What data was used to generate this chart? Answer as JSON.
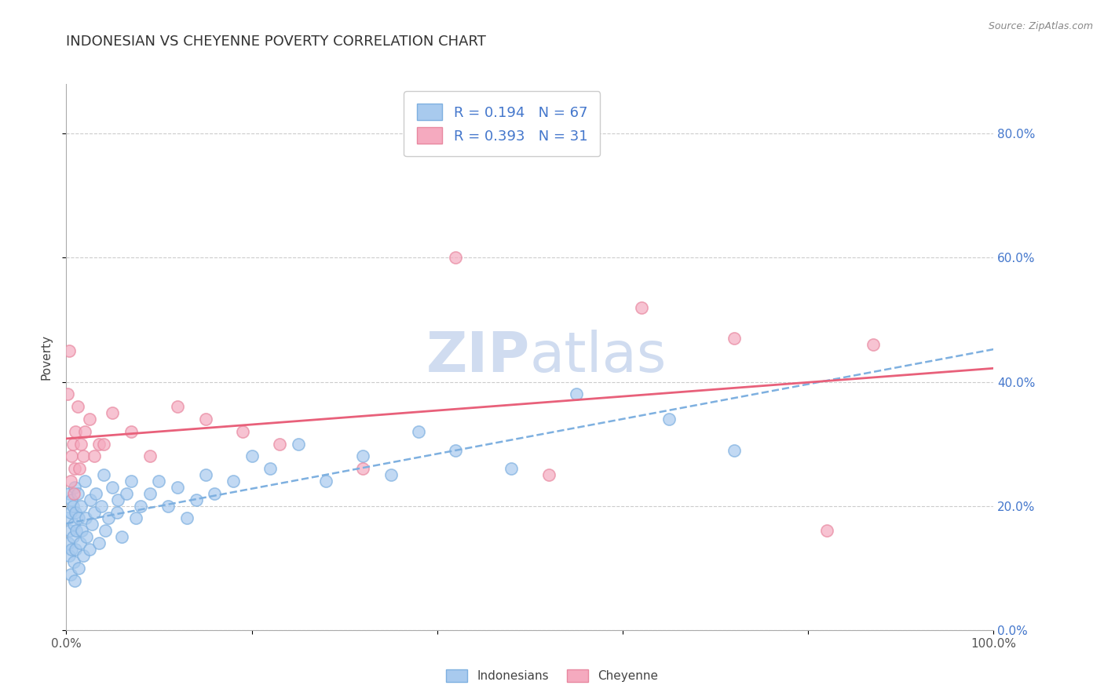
{
  "title": "INDONESIAN VS CHEYENNE POVERTY CORRELATION CHART",
  "source_text": "Source: ZipAtlas.com",
  "ylabel": "Poverty",
  "xlim": [
    0.0,
    1.0
  ],
  "ylim": [
    0.0,
    0.88
  ],
  "xticks": [
    0.0,
    0.2,
    0.4,
    0.6,
    0.8,
    1.0
  ],
  "xticklabels": [
    "0.0%",
    "",
    "",
    "",
    "",
    "100.0%"
  ],
  "yticks": [
    0.0,
    0.2,
    0.4,
    0.6,
    0.8
  ],
  "yticklabels": [
    "0.0%",
    "20.0%",
    "40.0%",
    "60.0%",
    "80.0%"
  ],
  "legend_labels": [
    "Indonesians",
    "Cheyenne"
  ],
  "R_indonesian": 0.194,
  "N_indonesian": 67,
  "R_cheyenne": 0.393,
  "N_cheyenne": 31,
  "indonesian_color": "#A8CAEE",
  "cheyenne_color": "#F5AABF",
  "indonesian_edge_color": "#7EB0E0",
  "cheyenne_edge_color": "#E888A0",
  "indonesian_trend_color": "#7EB0E0",
  "cheyenne_trend_color": "#E8607A",
  "background_color": "#FFFFFF",
  "watermark_color": "#D0DCF0",
  "title_fontsize": 13,
  "tick_fontsize": 11,
  "right_tick_color": "#4477CC",
  "indonesian_x": [
    0.001,
    0.002,
    0.003,
    0.003,
    0.004,
    0.005,
    0.005,
    0.006,
    0.006,
    0.007,
    0.007,
    0.008,
    0.008,
    0.009,
    0.009,
    0.01,
    0.01,
    0.011,
    0.012,
    0.013,
    0.013,
    0.015,
    0.016,
    0.017,
    0.018,
    0.02,
    0.021,
    0.022,
    0.025,
    0.026,
    0.028,
    0.03,
    0.032,
    0.035,
    0.038,
    0.04,
    0.042,
    0.045,
    0.05,
    0.055,
    0.056,
    0.06,
    0.065,
    0.07,
    0.075,
    0.08,
    0.09,
    0.1,
    0.11,
    0.12,
    0.13,
    0.14,
    0.15,
    0.16,
    0.18,
    0.2,
    0.22,
    0.25,
    0.28,
    0.32,
    0.35,
    0.38,
    0.42,
    0.48,
    0.55,
    0.65,
    0.72
  ],
  "indonesian_y": [
    0.18,
    0.14,
    0.12,
    0.22,
    0.16,
    0.09,
    0.19,
    0.13,
    0.21,
    0.15,
    0.2,
    0.11,
    0.17,
    0.08,
    0.23,
    0.19,
    0.13,
    0.16,
    0.22,
    0.18,
    0.1,
    0.14,
    0.2,
    0.16,
    0.12,
    0.24,
    0.18,
    0.15,
    0.13,
    0.21,
    0.17,
    0.19,
    0.22,
    0.14,
    0.2,
    0.25,
    0.16,
    0.18,
    0.23,
    0.19,
    0.21,
    0.15,
    0.22,
    0.24,
    0.18,
    0.2,
    0.22,
    0.24,
    0.2,
    0.23,
    0.18,
    0.21,
    0.25,
    0.22,
    0.24,
    0.28,
    0.26,
    0.3,
    0.24,
    0.28,
    0.25,
    0.32,
    0.29,
    0.26,
    0.38,
    0.34,
    0.29
  ],
  "cheyenne_x": [
    0.001,
    0.003,
    0.005,
    0.006,
    0.007,
    0.008,
    0.009,
    0.01,
    0.012,
    0.014,
    0.016,
    0.018,
    0.02,
    0.025,
    0.03,
    0.035,
    0.04,
    0.05,
    0.07,
    0.09,
    0.12,
    0.15,
    0.19,
    0.23,
    0.32,
    0.42,
    0.52,
    0.62,
    0.72,
    0.82,
    0.87
  ],
  "cheyenne_y": [
    0.38,
    0.45,
    0.24,
    0.28,
    0.3,
    0.22,
    0.26,
    0.32,
    0.36,
    0.26,
    0.3,
    0.28,
    0.32,
    0.34,
    0.28,
    0.3,
    0.3,
    0.35,
    0.32,
    0.28,
    0.36,
    0.34,
    0.32,
    0.3,
    0.26,
    0.6,
    0.25,
    0.52,
    0.47,
    0.16,
    0.46
  ]
}
